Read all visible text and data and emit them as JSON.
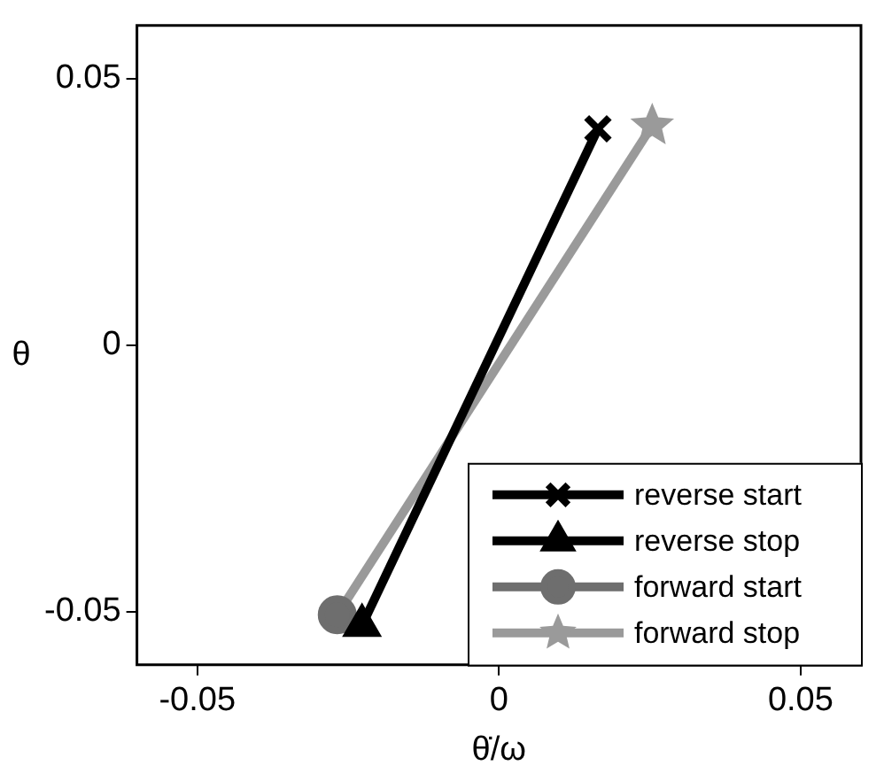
{
  "chart_data": {
    "type": "line",
    "xlabel": "θ̇/ω",
    "ylabel": "θ",
    "xlim": [
      -0.06,
      0.06
    ],
    "xticks": [
      -0.05,
      0,
      0.05
    ],
    "ylim": [
      -0.06,
      0.06
    ],
    "yticks": [
      -0.05,
      0,
      0.05
    ],
    "grid": false,
    "legend": "bottom right",
    "series": [
      {
        "name": "reverse start",
        "color": "#000000",
        "marker": "cross",
        "x": [
          -0.0227,
          0.0164
        ],
        "values": [
          -0.0526,
          0.0406
        ]
      },
      {
        "name": "reverse stop",
        "color": "#000000",
        "marker": "triangle",
        "x": [
          -0.0227
        ],
        "values": [
          -0.0526
        ]
      },
      {
        "name": "forward start",
        "color": "#6e6e6e",
        "marker": "circle",
        "x": [
          -0.0268
        ],
        "values": [
          -0.0506
        ]
      },
      {
        "name": "forward stop",
        "color": "#9a9a9a",
        "marker": "star",
        "x": [
          -0.0268,
          0.0254
        ],
        "values": [
          -0.0506,
          0.0412
        ]
      }
    ]
  }
}
